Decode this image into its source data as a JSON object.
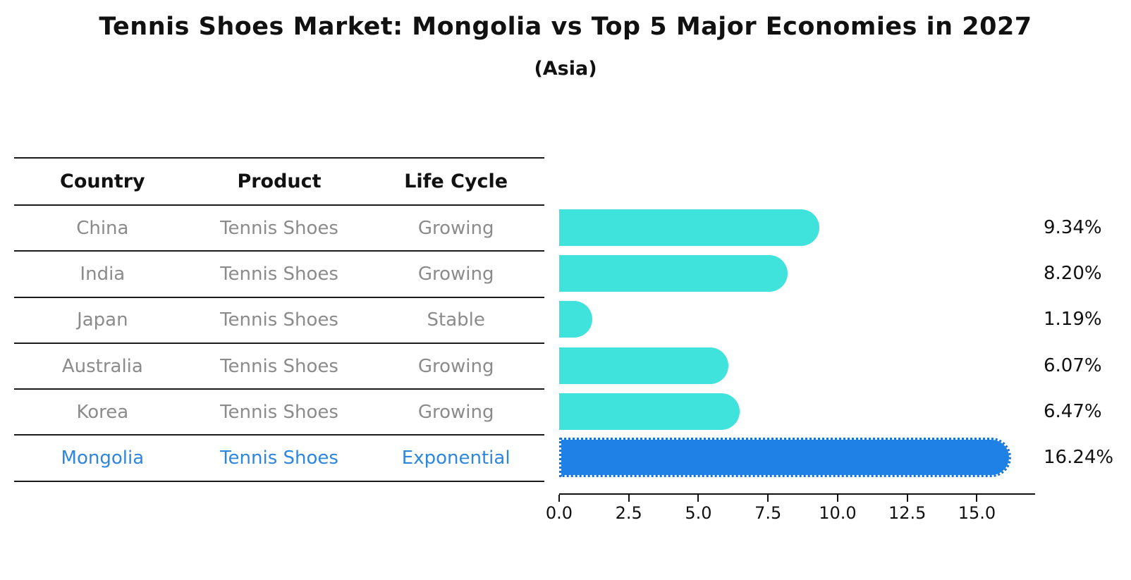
{
  "title": "Tennis Shoes Market: Mongolia vs Top 5 Major Economies in 2027",
  "subtitle": "(Asia)",
  "table": {
    "headers": [
      "Country",
      "Product",
      "Life Cycle"
    ],
    "rows": [
      {
        "country": "China",
        "product": "Tennis Shoes",
        "life_cycle": "Growing",
        "highlight": false
      },
      {
        "country": "India",
        "product": "Tennis Shoes",
        "life_cycle": "Growing",
        "highlight": false
      },
      {
        "country": "Japan",
        "product": "Tennis Shoes",
        "life_cycle": "Stable",
        "highlight": false
      },
      {
        "country": "Australia",
        "product": "Tennis Shoes",
        "life_cycle": "Growing",
        "highlight": false
      },
      {
        "country": "Korea",
        "product": "Tennis Shoes",
        "life_cycle": "Growing",
        "highlight": false
      },
      {
        "country": "Mongolia",
        "product": "Tennis Shoes",
        "life_cycle": "Exponential",
        "highlight": true
      }
    ]
  },
  "chart_data": {
    "type": "bar",
    "orientation": "horizontal",
    "title": "Tennis Shoes Market: Mongolia vs Top 5 Major Economies in 2027",
    "subtitle": "(Asia)",
    "categories": [
      "China",
      "India",
      "Japan",
      "Australia",
      "Korea",
      "Mongolia"
    ],
    "values": [
      9.34,
      8.2,
      1.19,
      6.07,
      6.47,
      16.24
    ],
    "value_labels": [
      "9.34%",
      "8.20%",
      "1.19%",
      "6.07%",
      "6.47%",
      "16.24%"
    ],
    "highlight_index": 5,
    "x_ticks": [
      0.0,
      2.5,
      5.0,
      7.5,
      10.0,
      12.5,
      15.0
    ],
    "x_tick_labels": [
      "0.0",
      "2.5",
      "5.0",
      "7.5",
      "10.0",
      "12.5",
      "15.0"
    ],
    "xlim": [
      0,
      17.09
    ],
    "grid": false,
    "legend": "none",
    "bar_color": "#40e2dc",
    "highlight_bar_color": "#1f80e6",
    "highlight_text_color": "#2e86de",
    "text_color_muted": "#8b8b8b"
  }
}
